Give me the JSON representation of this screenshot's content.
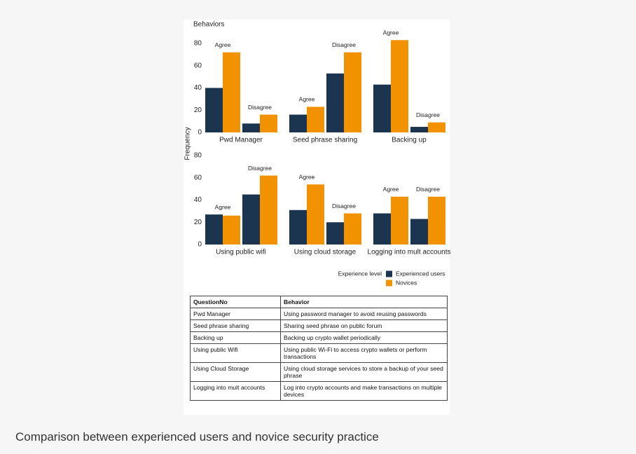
{
  "chart_data": {
    "type": "bar",
    "title": "Behaviors",
    "y_label": "Frequency",
    "legend_title": "Experience level",
    "ylim": [
      0,
      90
    ],
    "yticks": [
      0,
      20,
      40,
      60,
      80
    ],
    "series": [
      {
        "name": "Experienced users",
        "color": "#1b3550"
      },
      {
        "name": "Novices",
        "color": "#f39200"
      }
    ],
    "facets": [
      {
        "label": "Pwd Manager",
        "categories": [
          "Agree",
          "Disagree"
        ],
        "values": [
          [
            40,
            72
          ],
          [
            8,
            16
          ]
        ]
      },
      {
        "label": "Seed phrase sharing",
        "categories": [
          "Agree",
          "Disagree"
        ],
        "values": [
          [
            16,
            23
          ],
          [
            53,
            72
          ]
        ]
      },
      {
        "label": "Backing up",
        "categories": [
          "Agree",
          "Disagree"
        ],
        "values": [
          [
            43,
            83
          ],
          [
            5,
            9
          ]
        ]
      },
      {
        "label": "Using public wifi",
        "categories": [
          "Agree",
          "Disagree"
        ],
        "values": [
          [
            27,
            26
          ],
          [
            45,
            62
          ]
        ]
      },
      {
        "label": "Using cloud storage",
        "categories": [
          "Agree",
          "Disagree"
        ],
        "values": [
          [
            31,
            54
          ],
          [
            20,
            28
          ]
        ]
      },
      {
        "label": "Logging into mult accounts",
        "categories": [
          "Agree",
          "Disagree"
        ],
        "values": [
          [
            28,
            43
          ],
          [
            23,
            43
          ]
        ]
      }
    ]
  },
  "table": {
    "header": [
      "QuestionNo",
      "Behavior"
    ],
    "rows": [
      [
        "Pwd Manager",
        "Using password manager to avoid reusing passwords"
      ],
      [
        "Seed phrase sharing",
        "Sharing seed phrase on public forum"
      ],
      [
        "Backing up",
        "Backing up crypto wallet periodically"
      ],
      [
        "Using public Wifi",
        "Using public Wi-Fi to access crypto wallets or perform transactions"
      ],
      [
        "Using Cloud Storage",
        "Using cloud storage services to store a backup of your seed phrase"
      ],
      [
        "Logging into mult accounts",
        "Log into crypto accounts and make transactions on multiple devices"
      ]
    ]
  },
  "caption": "Comparison between experienced users and novice security practice"
}
